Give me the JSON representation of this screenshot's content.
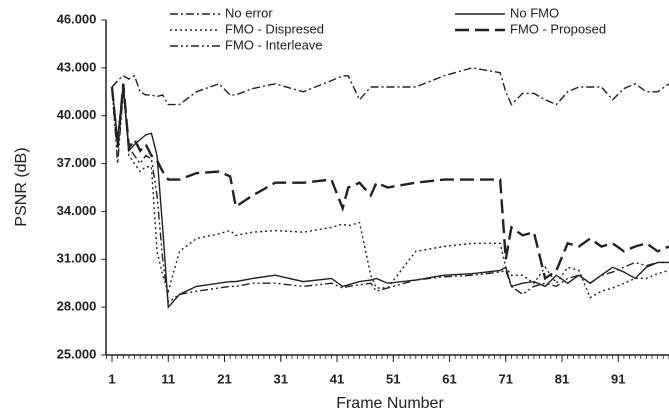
{
  "chart_data": {
    "type": "line",
    "xlabel": "Frame Number",
    "ylabel": "PSNR (dB)",
    "x": [
      1,
      2,
      3,
      4,
      5,
      6,
      7,
      8,
      9,
      10,
      11,
      13,
      16,
      20,
      22,
      23,
      26,
      30,
      35,
      40,
      42,
      43,
      45,
      47,
      48,
      50,
      55,
      60,
      65,
      70,
      71,
      72,
      74,
      76,
      78,
      80,
      82,
      84,
      86,
      88,
      90,
      92,
      94,
      96,
      98,
      100
    ],
    "xlim": [
      0,
      100
    ],
    "xticks": [
      1,
      11,
      21,
      31,
      41,
      51,
      61,
      71,
      81,
      91
    ],
    "ylim": [
      25,
      46
    ],
    "yticks": [
      {
        "value": 25,
        "label": "25.000"
      },
      {
        "value": 28,
        "label": "28.000"
      },
      {
        "value": 31,
        "label": "31.000"
      },
      {
        "value": 34,
        "label": "34.000"
      },
      {
        "value": 37,
        "label": "37.000"
      },
      {
        "value": 40,
        "label": "40.000"
      },
      {
        "value": 43,
        "label": "43.000"
      },
      {
        "value": 46,
        "label": "46.000"
      }
    ],
    "series": [
      {
        "name": "No error",
        "color": "#222222",
        "dash": "dashdot",
        "values": [
          41.8,
          42.2,
          42.5,
          42.3,
          42.5,
          41.5,
          41.3,
          41.3,
          41.2,
          41.3,
          40.7,
          40.7,
          41.5,
          42,
          41.3,
          41.3,
          41.7,
          42,
          41.5,
          42.2,
          42.5,
          42.5,
          41,
          41.8,
          41.8,
          41.8,
          41.8,
          42.5,
          43,
          42.7,
          41.5,
          40.7,
          41.4,
          41.4,
          41,
          40.7,
          41.5,
          41.8,
          41.8,
          41.8,
          41,
          41.7,
          42,
          41.5,
          41.5,
          42
        ]
      },
      {
        "name": "No FMO",
        "color": "#222222",
        "dash": "solid",
        "values": [
          41.8,
          38.5,
          42,
          37.8,
          38.2,
          38.5,
          38.8,
          38.9,
          37.5,
          33,
          28,
          28.8,
          29.3,
          29.5,
          29.6,
          29.6,
          29.8,
          30,
          29.6,
          29.8,
          29.3,
          29.4,
          29.6,
          29.7,
          29.8,
          29.5,
          29.7,
          30,
          30.1,
          30.3,
          30.5,
          29.3,
          29.5,
          29.6,
          29.3,
          30,
          29.5,
          30,
          29.5,
          30,
          30.5,
          30.2,
          29.8,
          30.5,
          30.8,
          30.8
        ]
      },
      {
        "name": "FMO - Dispresed",
        "color": "#222222",
        "dash": "dotted",
        "values": [
          41.8,
          38,
          42,
          37.5,
          37,
          36.5,
          36.8,
          36.8,
          31.5,
          30,
          29,
          31.5,
          32.3,
          32.6,
          32.8,
          32.5,
          32.7,
          32.8,
          32.7,
          33,
          33.2,
          33.1,
          33.3,
          30,
          29.2,
          29.2,
          31.5,
          31.8,
          32,
          32,
          30.5,
          30,
          30,
          29.5,
          30.5,
          29.5,
          30.5,
          30.3,
          28.6,
          29,
          29.2,
          29.5,
          29.8,
          29.8,
          30.1,
          30.3
        ]
      },
      {
        "name": "FMO - Proposed",
        "color": "#222222",
        "dash": "longdash",
        "values": [
          41.8,
          38,
          42,
          38,
          38.5,
          37.8,
          38.2,
          37.5,
          37.2,
          36.5,
          36,
          36,
          36.4,
          36.5,
          36.2,
          34.3,
          35,
          35.8,
          35.8,
          36,
          34.2,
          35.5,
          35.8,
          35,
          35.8,
          35.5,
          35.8,
          36,
          36,
          36,
          31,
          33,
          32.5,
          32.7,
          29.8,
          30.3,
          32,
          31.8,
          32.3,
          31.8,
          32,
          31.5,
          31.8,
          32,
          31.5,
          31.8
        ]
      },
      {
        "name": "FMO - Interleave",
        "color": "#222222",
        "dash": "dashdotdot",
        "values": [
          41.8,
          37,
          41.5,
          38,
          37.5,
          37,
          37.5,
          37.3,
          35,
          31,
          28.3,
          28.8,
          29,
          29.2,
          29.3,
          29.3,
          29.5,
          29.5,
          29.3,
          29.5,
          29.2,
          29.3,
          29.4,
          29.5,
          29,
          29.2,
          29.7,
          29.9,
          30,
          30.2,
          30.3,
          29.3,
          28.8,
          29.3,
          29.5,
          29.3,
          29.8,
          30,
          29.5,
          30,
          30.2,
          30.5,
          30.8,
          30.6,
          30.8,
          30.8
        ]
      }
    ]
  }
}
